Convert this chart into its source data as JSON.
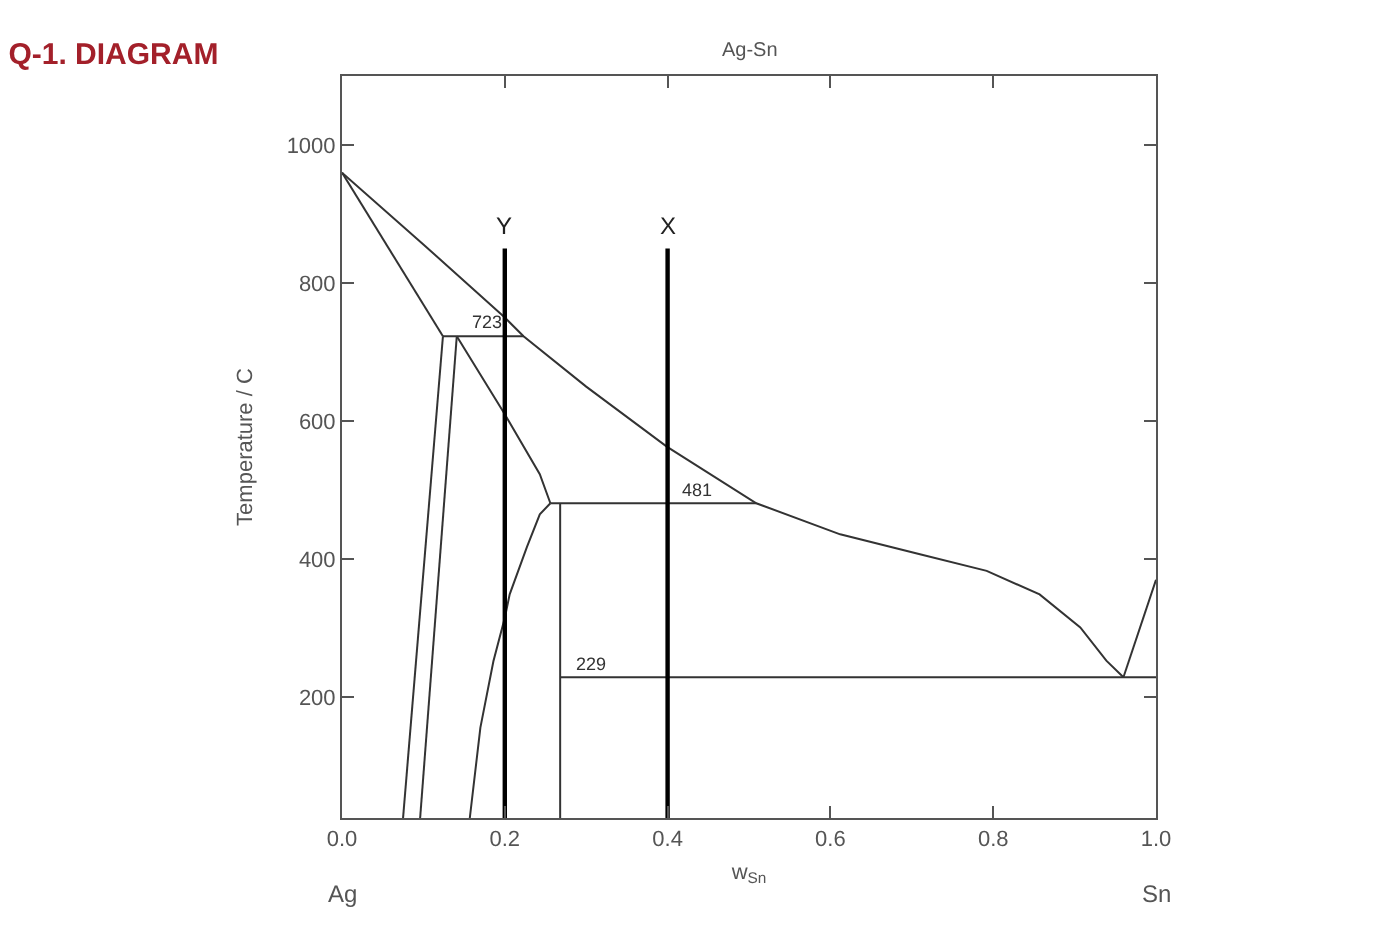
{
  "chart_data": {
    "type": "line",
    "title": "Q-1. DIAGRAM",
    "subtitle": "Ag-Sn",
    "xlabel": "w$_{Sn}$",
    "ylabel": "Temperature / C",
    "xlim": [
      0,
      1
    ],
    "ylim": [
      25,
      1100
    ],
    "xticks": [
      {
        "value": 0,
        "label": "0.0"
      },
      0.2,
      0.4,
      0.6,
      0.8,
      {
        "value": 1,
        "label": "1.0"
      }
    ],
    "yticks": [
      200,
      400,
      600,
      800,
      1000
    ],
    "grid": false,
    "legend": false,
    "annotations": [
      {
        "text": "723",
        "x": 0.177,
        "y": 723
      },
      {
        "text": "481",
        "x": 0.435,
        "y": 481
      },
      {
        "text": "229",
        "x": 0.305,
        "y": 229
      },
      "Ag",
      "Sn"
    ],
    "series": [
      {
        "color": "#333333",
        "x": [
          0,
          0.1,
          0.2,
          0.223,
          0.3,
          0.399,
          0.509,
          0.612,
          0.71,
          0.792,
          0.857,
          0.907,
          0.939,
          0.96
        ],
        "values": [
          960,
          856,
          750,
          723,
          650,
          563,
          481,
          436,
          407,
          383,
          349,
          301,
          253,
          229
        ]
      },
      {
        "color": "#333333",
        "x": [
          0.96,
          1
        ],
        "values": [
          229,
          370
        ]
      },
      {
        "color": "#333333",
        "x": [
          0,
          0.124
        ],
        "values": [
          960,
          723
        ]
      },
      {
        "color": "#333333",
        "x": [
          0.124,
          0.223
        ],
        "values": [
          723,
          723
        ]
      },
      {
        "color": "#333333",
        "x": [
          0.124,
          0.075
        ],
        "values": [
          723,
          25
        ]
      },
      {
        "color": "#333333",
        "x": [
          0.141,
          0.096
        ],
        "values": [
          723,
          25
        ]
      },
      {
        "color": "#333333",
        "x": [
          0.141,
          0.2,
          0.243,
          0.256
        ],
        "values": [
          723,
          610,
          523,
          481
        ]
      },
      {
        "color": "#333333",
        "x": [
          0.256,
          0.509
        ],
        "values": [
          481,
          481
        ]
      },
      {
        "color": "#333333",
        "x": [
          0.256,
          0.243,
          0.227,
          0.206,
          0.2,
          0.186,
          0.17,
          0.157
        ],
        "values": [
          481,
          465,
          417,
          349,
          315,
          252,
          156,
          25
        ]
      },
      {
        "color": "#333333",
        "x": [
          0.268,
          0.268
        ],
        "values": [
          481,
          25
        ]
      },
      {
        "color": "#333333",
        "x": [
          0.268,
          1
        ],
        "values": [
          229,
          229
        ]
      },
      {
        "name": "Y",
        "color": "#000000",
        "x": [
          0.2,
          0.2
        ],
        "values": [
          25,
          850
        ]
      },
      {
        "name": "X",
        "color": "#000000",
        "x": [
          0.4,
          0.4
        ],
        "values": [
          25,
          850
        ]
      }
    ]
  }
}
